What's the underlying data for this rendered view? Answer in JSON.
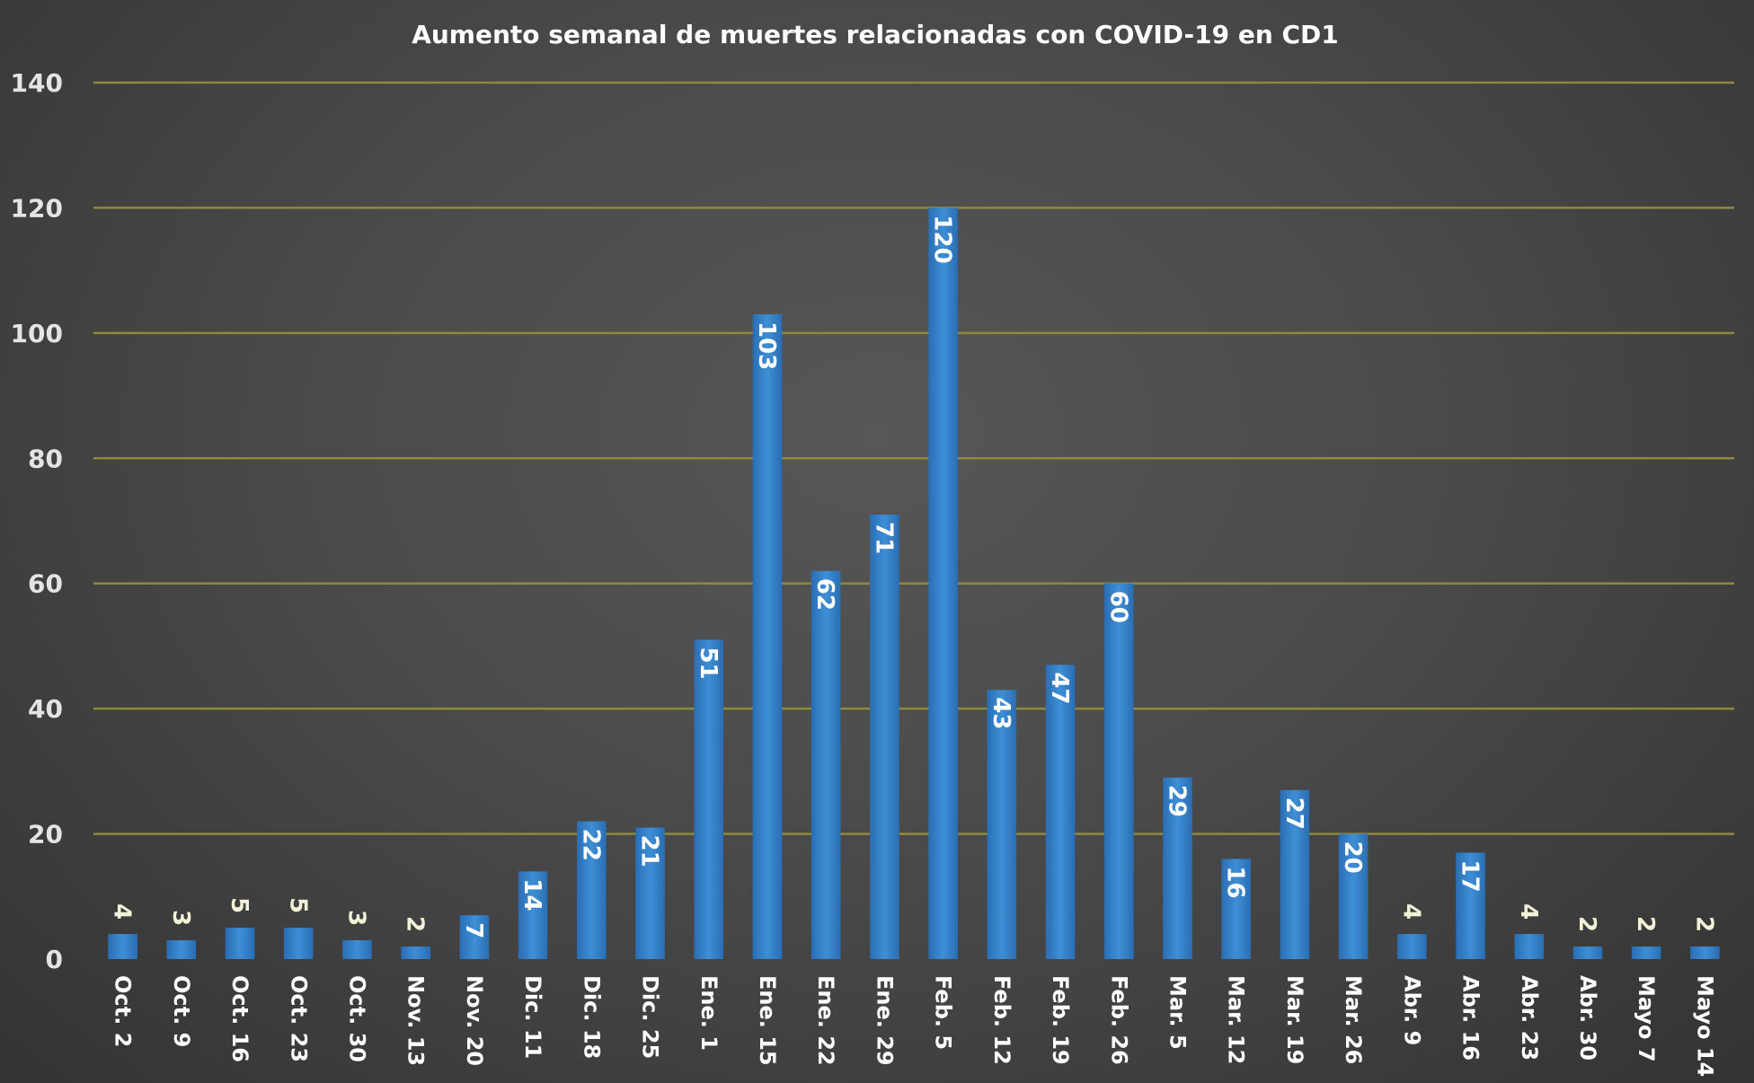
{
  "chart_data": {
    "type": "bar",
    "title": "Aumento semanal de muertes relacionadas con COVID-19 en CD1",
    "xlabel": "",
    "ylabel": "",
    "ylim": [
      0,
      140
    ],
    "yticks": [
      0,
      20,
      40,
      60,
      80,
      100,
      120,
      140
    ],
    "grid": true,
    "legend": "none",
    "bar_color": "#2f7bc6",
    "grid_color": "#8c8a3e",
    "categories": [
      "Oct. 2",
      "Oct. 9",
      "Oct. 16",
      "Oct. 23",
      "Oct. 30",
      "Nov. 13",
      "Nov. 20",
      "Dic. 11",
      "Dic. 18",
      "Dic. 25",
      "Ene. 1",
      "Ene. 15",
      "Ene. 22",
      "Ene. 29",
      "Feb. 5",
      "Feb. 12",
      "Feb. 19",
      "Feb. 26",
      "Mar. 5",
      "Mar. 12",
      "Mar. 19",
      "Mar. 26",
      "Abr. 9",
      "Abr. 16",
      "Abr. 23",
      "Abr. 30",
      "Mayo 7",
      "Mayo 14"
    ],
    "values": [
      4,
      3,
      5,
      5,
      3,
      2,
      7,
      14,
      22,
      21,
      51,
      103,
      62,
      71,
      120,
      43,
      47,
      60,
      29,
      16,
      27,
      20,
      4,
      17,
      4,
      2,
      2,
      2
    ]
  }
}
